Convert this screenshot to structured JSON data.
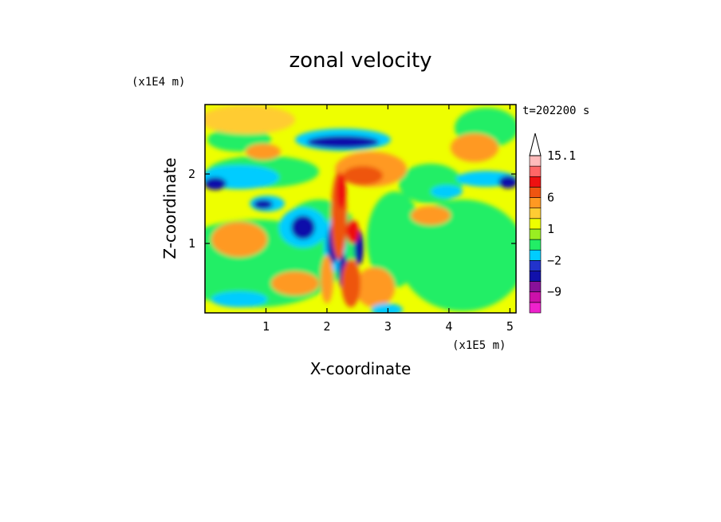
{
  "chart_data": {
    "type": "heatmap",
    "title": "zonal velocity",
    "xlabel": "X-coordinate",
    "ylabel": "Z-coordinate",
    "x_scale_label": "(x1E5 m)",
    "y_scale_label": "(x1E4 m)",
    "time_label": "t=202200 s",
    "xlim": [
      0,
      5.1
    ],
    "ylim": [
      0,
      3.0
    ],
    "xticks": [
      "1",
      "2",
      "3",
      "4",
      "5"
    ],
    "yticks": [
      "1",
      "2"
    ],
    "colorbar": {
      "labels": [
        "15.1",
        "6",
        "1",
        "−2",
        "−9"
      ],
      "levels": [
        -16,
        -12,
        -9,
        -6,
        -4,
        -2,
        -1,
        0,
        1,
        2,
        4,
        6,
        9,
        12,
        15.1
      ]
    }
  },
  "colors": {
    "levels": [
      "#ee22cc",
      "#cc11aa",
      "#881199",
      "#1111aa",
      "#2233cc",
      "#00ccff",
      "#22ee66",
      "#99ee22",
      "#eeff00",
      "#ffcc33",
      "#ff9922",
      "#ee5511",
      "#ee1111",
      "#ff6666",
      "#ffbbbb"
    ]
  }
}
